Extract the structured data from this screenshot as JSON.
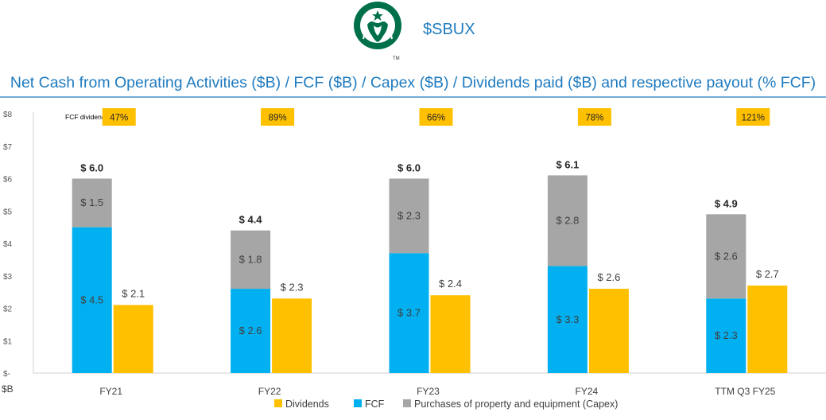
{
  "header": {
    "ticker": "$SBUX",
    "title": "Net Cash from Operating Activities ($B) / FCF ($B) / Capex ($B) / Dividends paid ($B) and respective payout (% FCF)",
    "logo_icon": "starbucks-siren-logo",
    "logo_trademark": "TM"
  },
  "colors": {
    "fcf": "#00b0f0",
    "capex": "#a6a6a6",
    "dividends": "#ffc000",
    "title": "#1f7bbf",
    "logo_green": "#00704a"
  },
  "chart_data": {
    "type": "bar",
    "subtype": "stacked bar (FCF + Capex) with adjacent Dividends bar",
    "categories": [
      "FY21",
      "FY22",
      "FY23",
      "FY24",
      "TTM Q3 FY25"
    ],
    "series": [
      {
        "name": "FCF",
        "values": [
          4.5,
          2.6,
          3.7,
          3.3,
          2.3
        ],
        "labels": [
          "$ 4.5",
          "$ 2.6",
          "$ 3.7",
          "$ 3.3",
          "$ 2.3"
        ]
      },
      {
        "name": "Purchases of property and equipment (Capex)",
        "values": [
          1.5,
          1.8,
          2.3,
          2.8,
          2.6
        ],
        "labels": [
          "$ 1.5",
          "$ 1.8",
          "$ 2.3",
          "$ 2.8",
          "$ 2.6"
        ]
      },
      {
        "name": "Dividends",
        "values": [
          2.1,
          2.3,
          2.4,
          2.6,
          2.7
        ],
        "labels": [
          "$ 2.1",
          "$ 2.3",
          "$ 2.4",
          "$ 2.6",
          "$ 2.7"
        ]
      }
    ],
    "totals": [
      6.0,
      4.4,
      6.0,
      6.1,
      4.9
    ],
    "total_labels": [
      "$ 6.0",
      "$ 4.4",
      "$ 6.0",
      "$ 6.1",
      "$ 4.9"
    ],
    "payout_label": "FCF dividend payout",
    "payout": [
      "47%",
      "89%",
      "66%",
      "78%",
      "121%"
    ],
    "ylim": [
      0,
      8
    ],
    "ytick_labels": [
      "$-",
      "$1",
      "$2",
      "$3",
      "$4",
      "$5",
      "$6",
      "$7",
      "$8"
    ],
    "yunit": "$B",
    "legend": [
      "Dividends",
      "FCF",
      "Purchases of property and equipment (Capex)"
    ],
    "legend_position": "bottom",
    "grid": false
  }
}
